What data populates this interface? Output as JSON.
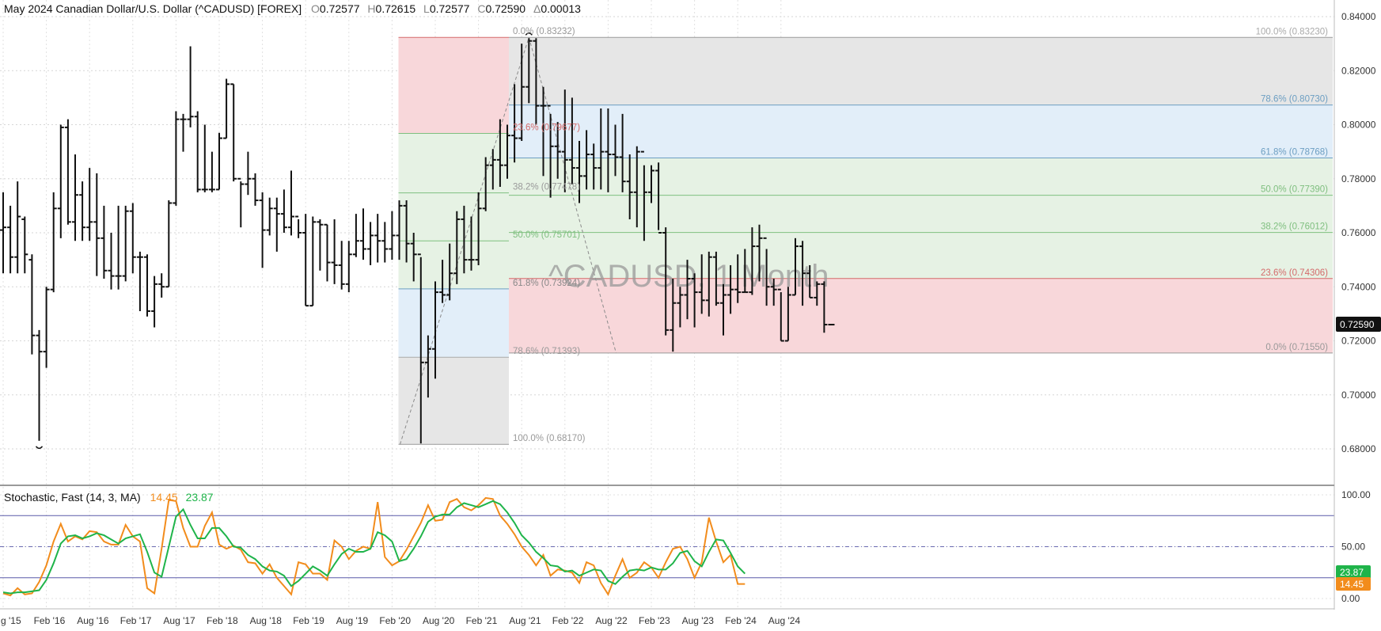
{
  "header": {
    "title": "May 2024  Canadian Dollar/U.S. Dollar (^CADUSD) [FOREX]",
    "open_label": "O",
    "open": "0.72577",
    "high_label": "H",
    "high": "0.72615",
    "low_label": "L",
    "low": "0.72577",
    "close_label": "C",
    "close": "0.72590",
    "change_label": "Δ",
    "change": "0.00013"
  },
  "watermark": "^CADUSD, 1 Month",
  "last_price_badge": "0.72590",
  "colors": {
    "bars": "#111111",
    "fast_k": "#f28c1c",
    "slow_d": "#1fb44a",
    "fib_red": "#f8d7da",
    "fib_green": "#e6f2e4",
    "fib_blue": "#e2eef9",
    "fib_gray": "#e6e6e6"
  },
  "chart_data": [
    {
      "type": "ohlc",
      "interval": "1 Month",
      "ylim": [
        0.67,
        0.845
      ],
      "y_ticks": [
        "0.84000",
        "0.82000",
        "0.80000",
        "0.78000",
        "0.76000",
        "0.74000",
        "0.72000",
        "0.70000",
        "0.68000"
      ],
      "x_ticks": [
        "g '15",
        "Feb '16",
        "Aug '16",
        "Feb '17",
        "Aug '17",
        "Feb '18",
        "Aug '18",
        "Feb '19",
        "Aug '19",
        "Feb '20",
        "Aug '20",
        "Feb '21",
        "Aug '21",
        "Feb '22",
        "Aug '22",
        "Feb '23",
        "Aug '23",
        "Feb '24",
        "Aug '24"
      ],
      "start": "2015-08",
      "bars": [
        [
          0.761,
          0.775,
          0.745,
          0.762
        ],
        [
          0.762,
          0.77,
          0.745,
          0.751
        ],
        [
          0.751,
          0.779,
          0.745,
          0.766
        ],
        [
          0.765,
          0.766,
          0.745,
          0.752
        ],
        [
          0.75,
          0.752,
          0.715,
          0.722
        ],
        [
          0.722,
          0.724,
          0.683,
          0.716
        ],
        [
          0.716,
          0.74,
          0.71,
          0.739
        ],
        [
          0.739,
          0.775,
          0.738,
          0.769
        ],
        [
          0.769,
          0.8,
          0.758,
          0.799
        ],
        [
          0.799,
          0.802,
          0.763,
          0.764
        ],
        [
          0.764,
          0.789,
          0.757,
          0.774
        ],
        [
          0.774,
          0.779,
          0.757,
          0.762
        ],
        [
          0.762,
          0.784,
          0.757,
          0.764
        ],
        [
          0.764,
          0.782,
          0.744,
          0.758
        ],
        [
          0.758,
          0.77,
          0.743,
          0.746
        ],
        [
          0.746,
          0.76,
          0.739,
          0.744
        ],
        [
          0.744,
          0.77,
          0.739,
          0.744
        ],
        [
          0.744,
          0.77,
          0.742,
          0.768
        ],
        [
          0.768,
          0.771,
          0.745,
          0.751
        ],
        [
          0.751,
          0.753,
          0.731,
          0.751
        ],
        [
          0.751,
          0.752,
          0.729,
          0.731
        ],
        [
          0.731,
          0.744,
          0.725,
          0.741
        ],
        [
          0.741,
          0.745,
          0.736,
          0.74
        ],
        [
          0.74,
          0.772,
          0.74,
          0.771
        ],
        [
          0.771,
          0.805,
          0.77,
          0.802
        ],
        [
          0.802,
          0.804,
          0.79,
          0.802
        ],
        [
          0.802,
          0.829,
          0.799,
          0.803
        ],
        [
          0.803,
          0.805,
          0.775,
          0.776
        ],
        [
          0.776,
          0.8,
          0.775,
          0.776
        ],
        [
          0.776,
          0.79,
          0.775,
          0.776
        ],
        [
          0.776,
          0.797,
          0.776,
          0.795
        ],
        [
          0.795,
          0.817,
          0.795,
          0.815
        ],
        [
          0.815,
          0.815,
          0.779,
          0.78
        ],
        [
          0.78,
          0.779,
          0.762,
          0.778
        ],
        [
          0.778,
          0.79,
          0.774,
          0.78
        ],
        [
          0.78,
          0.782,
          0.77,
          0.772
        ],
        [
          0.772,
          0.775,
          0.747,
          0.761
        ],
        [
          0.761,
          0.773,
          0.759,
          0.769
        ],
        [
          0.769,
          0.773,
          0.753,
          0.767
        ],
        [
          0.767,
          0.776,
          0.76,
          0.762
        ],
        [
          0.762,
          0.783,
          0.759,
          0.766
        ],
        [
          0.766,
          0.765,
          0.758,
          0.76
        ],
        [
          0.76,
          0.767,
          0.733,
          0.733
        ],
        [
          0.733,
          0.766,
          0.733,
          0.764
        ],
        [
          0.764,
          0.765,
          0.746,
          0.763
        ],
        [
          0.763,
          0.763,
          0.742,
          0.749
        ],
        [
          0.749,
          0.765,
          0.741,
          0.748
        ],
        [
          0.748,
          0.757,
          0.739,
          0.741
        ],
        [
          0.741,
          0.757,
          0.738,
          0.752
        ],
        [
          0.752,
          0.767,
          0.751,
          0.757
        ],
        [
          0.757,
          0.769,
          0.75,
          0.754
        ],
        [
          0.754,
          0.764,
          0.748,
          0.759
        ],
        [
          0.759,
          0.767,
          0.749,
          0.757
        ],
        [
          0.757,
          0.764,
          0.749,
          0.754
        ],
        [
          0.754,
          0.768,
          0.75,
          0.759
        ],
        [
          0.759,
          0.772,
          0.75,
          0.77
        ],
        [
          0.77,
          0.772,
          0.749,
          0.756
        ],
        [
          0.756,
          0.76,
          0.742,
          0.752
        ],
        [
          0.752,
          0.751,
          0.682,
          0.712
        ],
        [
          0.712,
          0.722,
          0.699,
          0.717
        ],
        [
          0.717,
          0.742,
          0.706,
          0.738
        ],
        [
          0.738,
          0.75,
          0.734,
          0.737
        ],
        [
          0.737,
          0.756,
          0.735,
          0.745
        ],
        [
          0.745,
          0.768,
          0.741,
          0.765
        ],
        [
          0.765,
          0.77,
          0.745,
          0.75
        ],
        [
          0.75,
          0.766,
          0.746,
          0.75
        ],
        [
          0.75,
          0.775,
          0.748,
          0.769
        ],
        [
          0.769,
          0.788,
          0.768,
          0.785
        ],
        [
          0.785,
          0.791,
          0.776,
          0.787
        ],
        [
          0.787,
          0.802,
          0.777,
          0.785
        ],
        [
          0.785,
          0.8,
          0.78,
          0.796
        ],
        [
          0.796,
          0.815,
          0.786,
          0.795
        ],
        [
          0.795,
          0.83,
          0.794,
          0.814
        ],
        [
          0.814,
          0.832,
          0.808,
          0.831
        ],
        [
          0.831,
          0.832,
          0.8,
          0.807
        ],
        [
          0.807,
          0.814,
          0.781,
          0.807
        ],
        [
          0.807,
          0.804,
          0.773,
          0.792
        ],
        [
          0.792,
          0.801,
          0.78,
          0.79
        ],
        [
          0.79,
          0.813,
          0.775,
          0.787
        ],
        [
          0.787,
          0.81,
          0.778,
          0.784
        ],
        [
          0.784,
          0.794,
          0.771,
          0.781
        ],
        [
          0.781,
          0.798,
          0.776,
          0.789
        ],
        [
          0.789,
          0.793,
          0.776,
          0.784
        ],
        [
          0.784,
          0.806,
          0.776,
          0.79
        ],
        [
          0.79,
          0.806,
          0.775,
          0.789
        ],
        [
          0.789,
          0.8,
          0.781,
          0.788
        ],
        [
          0.788,
          0.804,
          0.775,
          0.779
        ],
        [
          0.779,
          0.789,
          0.765,
          0.775
        ],
        [
          0.775,
          0.792,
          0.762,
          0.79
        ],
        [
          0.79,
          0.785,
          0.757,
          0.775
        ],
        [
          0.775,
          0.785,
          0.771,
          0.783
        ],
        [
          0.783,
          0.786,
          0.761,
          0.76
        ],
        [
          0.76,
          0.762,
          0.722,
          0.724
        ],
        [
          0.724,
          0.743,
          0.716,
          0.734
        ],
        [
          0.734,
          0.74,
          0.725,
          0.737
        ],
        [
          0.737,
          0.75,
          0.728,
          0.743
        ],
        [
          0.743,
          0.745,
          0.725,
          0.738
        ],
        [
          0.738,
          0.752,
          0.73,
          0.735
        ],
        [
          0.735,
          0.753,
          0.729,
          0.751
        ],
        [
          0.751,
          0.753,
          0.733,
          0.734
        ],
        [
          0.734,
          0.741,
          0.722,
          0.737
        ],
        [
          0.737,
          0.748,
          0.73,
          0.739
        ],
        [
          0.739,
          0.752,
          0.734,
          0.738
        ],
        [
          0.738,
          0.754,
          0.738,
          0.738
        ],
        [
          0.738,
          0.762,
          0.737,
          0.755
        ],
        [
          0.755,
          0.763,
          0.742,
          0.758
        ],
        [
          0.758,
          0.754,
          0.733,
          0.74
        ],
        [
          0.74,
          0.743,
          0.733,
          0.739
        ],
        [
          0.739,
          0.738,
          0.72,
          0.72
        ],
        [
          0.72,
          0.74,
          0.72,
          0.737
        ],
        [
          0.737,
          0.758,
          0.737,
          0.755
        ],
        [
          0.755,
          0.757,
          0.733,
          0.745
        ],
        [
          0.745,
          0.748,
          0.736,
          0.736
        ],
        [
          0.736,
          0.742,
          0.733,
          0.741
        ],
        [
          0.741,
          0.742,
          0.723,
          0.726
        ],
        [
          0.726,
          0.726,
          0.726,
          0.726
        ]
      ]
    },
    {
      "type": "fibonacci_retracement",
      "levels": [
        {
          "label": "0.0% (0.83232)",
          "value": 0.83232
        },
        {
          "label": "23.6% (0.79677)",
          "value": 0.79677
        },
        {
          "label": "38.2% (0.77478)",
          "value": 0.77478
        },
        {
          "label": "50.0% (0.75701)",
          "value": 0.75701
        },
        {
          "label": "61.8% (0.73924)",
          "value": 0.73924
        },
        {
          "label": "78.6% (0.71393)",
          "value": 0.71393
        },
        {
          "label": "100.0% (0.68170)",
          "value": 0.6817
        }
      ]
    },
    {
      "type": "fibonacci_retracement",
      "levels": [
        {
          "label": "100.0% (0.83230)",
          "value": 0.8323
        },
        {
          "label": "78.6% (0.80730)",
          "value": 0.8073
        },
        {
          "label": "61.8% (0.78768)",
          "value": 0.78768
        },
        {
          "label": "50.0% (0.77390)",
          "value": 0.7739
        },
        {
          "label": "38.2% (0.76012)",
          "value": 0.76012
        },
        {
          "label": "23.6% (0.74306)",
          "value": 0.74306
        },
        {
          "label": "0.0% (0.71550)",
          "value": 0.7155
        }
      ]
    },
    {
      "type": "line",
      "title": "Stochastic, Fast  (14, 3, MA)",
      "ylim": [
        -5,
        105
      ],
      "y_ticks": [
        "100.00",
        "50.00",
        "0.00"
      ],
      "levels": [
        80,
        50,
        20
      ],
      "last_values": {
        "fast_k": "14.45",
        "slow_d": "23.87"
      },
      "series": [
        {
          "key": "fast_k",
          "values": [
            5,
            3,
            10,
            4,
            5,
            16,
            32,
            55,
            72,
            55,
            60,
            57,
            65,
            64,
            55,
            52,
            52,
            71,
            60,
            55,
            10,
            5,
            48,
            95,
            94,
            68,
            50,
            50,
            70,
            83,
            52,
            48,
            51,
            47,
            35,
            34,
            24,
            33,
            20,
            12,
            4,
            35,
            33,
            24,
            24,
            18,
            56,
            50,
            38,
            46,
            50,
            48,
            93,
            40,
            32,
            36,
            47,
            60,
            73,
            90,
            75,
            76,
            93,
            96,
            88,
            85,
            90,
            97,
            96,
            80,
            72,
            62,
            50,
            42,
            32,
            42,
            22,
            28,
            27,
            25,
            15,
            35,
            32,
            15,
            4,
            22,
            38,
            20,
            25,
            35,
            30,
            20,
            35,
            48,
            50,
            38,
            20,
            35,
            78,
            55,
            35,
            42,
            14,
            14
          ]
        },
        {
          "key": "slow_d",
          "values": [
            6,
            5,
            6,
            6,
            7,
            8,
            18,
            34,
            53,
            60,
            61,
            58,
            60,
            63,
            61,
            57,
            53,
            58,
            60,
            62,
            45,
            25,
            21,
            50,
            79,
            86,
            71,
            58,
            58,
            68,
            68,
            60,
            50,
            49,
            42,
            38,
            31,
            27,
            26,
            22,
            12,
            17,
            24,
            31,
            27,
            22,
            33,
            43,
            48,
            45,
            45,
            48,
            64,
            61,
            55,
            36,
            38,
            48,
            60,
            74,
            79,
            81,
            81,
            88,
            92,
            90,
            88,
            91,
            94,
            91,
            83,
            73,
            61,
            54,
            45,
            39,
            32,
            31,
            26,
            27,
            22,
            25,
            28,
            27,
            17,
            14,
            21,
            27,
            28,
            27,
            30,
            28,
            28,
            34,
            44,
            46,
            36,
            31,
            45,
            57,
            56,
            44,
            31,
            24
          ]
        }
      ]
    }
  ]
}
